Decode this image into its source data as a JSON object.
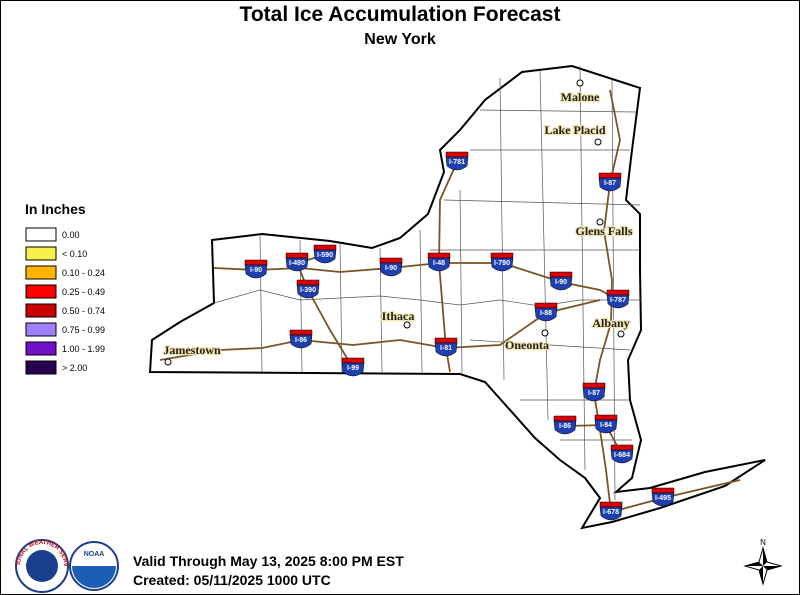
{
  "header": {
    "title": "Total Ice Accumulation Forecast",
    "subtitle": "New York"
  },
  "legend": {
    "title": "In Inches",
    "items": [
      {
        "label": "0.00",
        "color": "#ffffff"
      },
      {
        "label": "< 0.10",
        "color": "#f5f04a"
      },
      {
        "label": "0.10 - 0.24",
        "color": "#ffb400"
      },
      {
        "label": "0.25 - 0.49",
        "color": "#ff0000"
      },
      {
        "label": "0.50 - 0.74",
        "color": "#c80000"
      },
      {
        "label": "0.75 - 0.99",
        "color": "#a080ff"
      },
      {
        "label": "1.00 - 1.99",
        "color": "#7010c8"
      },
      {
        "label": "> 2.00",
        "color": "#280050"
      }
    ]
  },
  "cities": [
    "Malone",
    "Lake Placid",
    "Glens Falls",
    "Ithaca",
    "Albany",
    "Oneonta",
    "Jamestown"
  ],
  "interstates": [
    "I-781",
    "I-87",
    "I-590",
    "I-490",
    "I-90",
    "I-90",
    "I-48",
    "I-790",
    "I-90",
    "I-787",
    "I-390",
    "I-88",
    "I-86",
    "I-81",
    "I-99",
    "I-87",
    "I-86",
    "I-84",
    "I-684",
    "I-495",
    "I-678"
  ],
  "footer": {
    "valid": "Valid Through May 13, 2025 8:00 PM EST",
    "created": "Created: 05/11/2025 1000 UTC"
  },
  "logos": {
    "nws": "NATIONAL WEATHER SERVICE",
    "noaa": "NOAA"
  },
  "compass": "N"
}
